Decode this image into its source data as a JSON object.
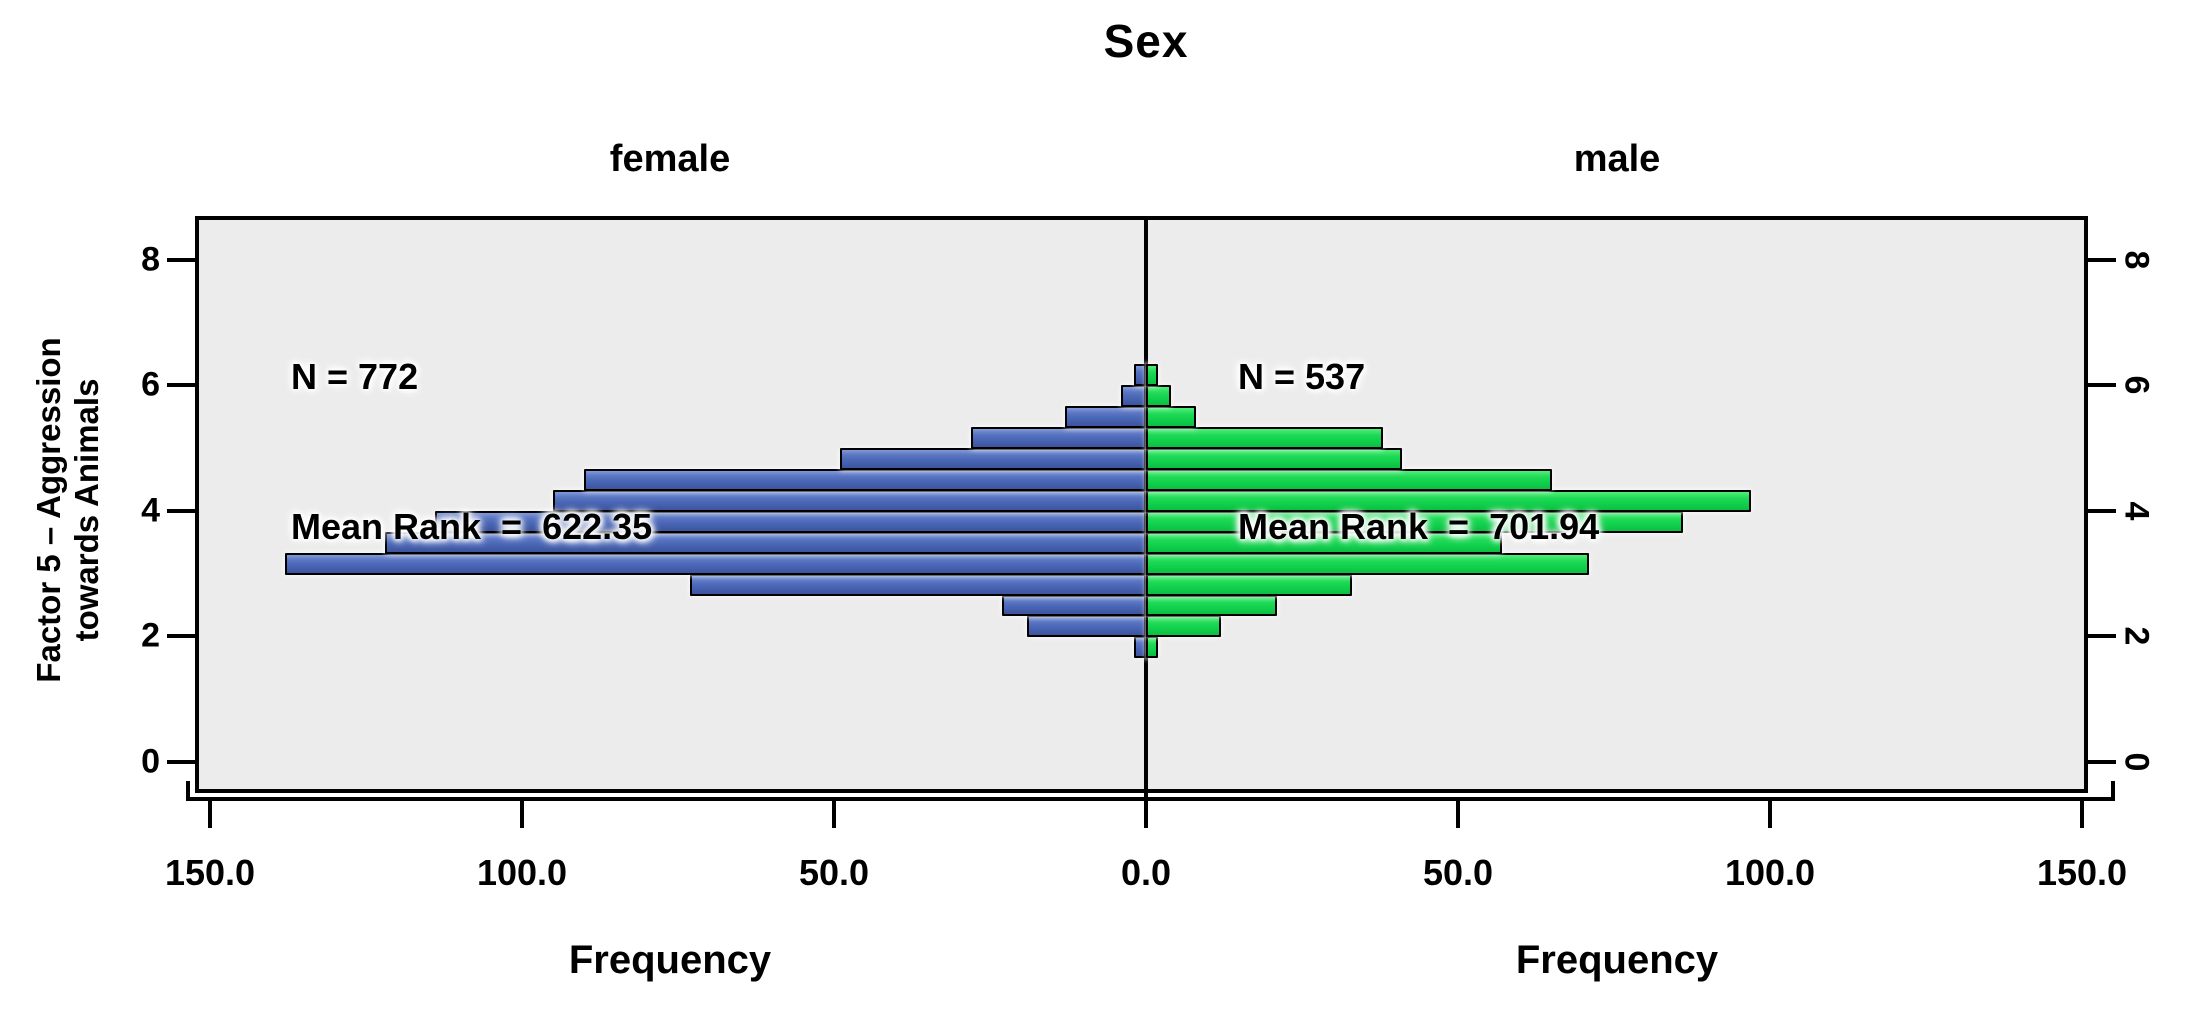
{
  "title": "Sex",
  "panels": {
    "left_label": "female",
    "right_label": "male"
  },
  "annotations": {
    "female": {
      "n_label": "N = 772",
      "mean_rank_label": "Mean Rank  =  622.35"
    },
    "male": {
      "n_label": "N = 537",
      "mean_rank_label": "Mean Rank  =  701.94"
    }
  },
  "axes": {
    "y_label_line1": "Factor 5 – Aggression",
    "y_label_line2": "towards Animals",
    "y_tick_labels": [
      "8",
      "6",
      "4",
      "2",
      "0"
    ],
    "y_tick_values": [
      8,
      6,
      4,
      2,
      0
    ],
    "x_tick_labels_left": [
      "150.0",
      "100.0",
      "50.0",
      "0.0"
    ],
    "x_tick_values_left": [
      150,
      100,
      50,
      0
    ],
    "x_tick_labels_right": [
      "50.0",
      "100.0",
      "150.0"
    ],
    "x_tick_values_right": [
      50,
      100,
      150
    ],
    "x_label_left": "Frequency",
    "x_label_right": "Frequency"
  },
  "colors": {
    "female_bar": "#4a67b7",
    "male_bar": "#12d24e",
    "panel_background": "#ececec",
    "axis_line": "#000000",
    "page_background": "#ffffff"
  },
  "chart_data": {
    "type": "bar",
    "subtype": "population-pyramid",
    "title": "Sex",
    "xlabel": "Frequency",
    "ylabel": "Factor 5 – Aggression towards Animals",
    "x_axis": {
      "max_each_side": 150,
      "ticks": [
        150,
        100,
        50,
        0,
        50,
        100,
        150
      ]
    },
    "y_axis": {
      "ticks": [
        0,
        2,
        4,
        6,
        8
      ],
      "range": [
        -0.5,
        8.7
      ]
    },
    "bin_width": 0.333,
    "bin_edges": [
      1.667,
      2.0,
      2.333,
      2.667,
      3.0,
      3.333,
      3.667,
      4.0,
      4.333,
      4.667,
      5.0,
      5.333,
      5.667,
      6.0,
      6.333
    ],
    "series": [
      {
        "name": "female",
        "side": "left",
        "n": 772,
        "mean_rank": 622.35,
        "values": [
          2,
          19,
          23,
          73,
          138,
          122,
          114,
          95,
          90,
          49,
          28,
          13,
          4,
          2
        ]
      },
      {
        "name": "male",
        "side": "right",
        "n": 537,
        "mean_rank": 701.94,
        "values": [
          2,
          12,
          21,
          33,
          71,
          57,
          86,
          97,
          65,
          41,
          38,
          8,
          4,
          2
        ]
      }
    ],
    "legend_position": "none",
    "grid": false
  }
}
